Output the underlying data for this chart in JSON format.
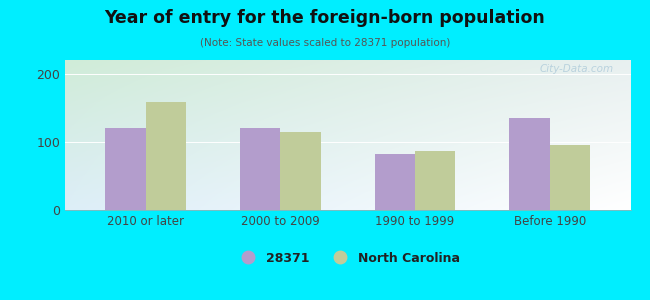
{
  "title": "Year of entry for the foreign-born population",
  "subtitle": "(Note: State values scaled to 28371 population)",
  "categories": [
    "2010 or later",
    "2000 to 2009",
    "1990 to 1999",
    "Before 1990"
  ],
  "values_28371": [
    120,
    120,
    82,
    135
  ],
  "values_nc": [
    158,
    115,
    87,
    95
  ],
  "color_28371": "#b39dcc",
  "color_nc": "#c0cc9a",
  "background_outer": "#00eeff",
  "grad_top_left": "#d0ecd8",
  "grad_top_right": "#e8f0f0",
  "grad_bottom": "#ddeef8",
  "ylim": [
    0,
    220
  ],
  "yticks": [
    0,
    100,
    200
  ],
  "bar_width": 0.3,
  "legend_label_28371": "28371",
  "legend_label_nc": "North Carolina",
  "watermark": "City-Data.com"
}
